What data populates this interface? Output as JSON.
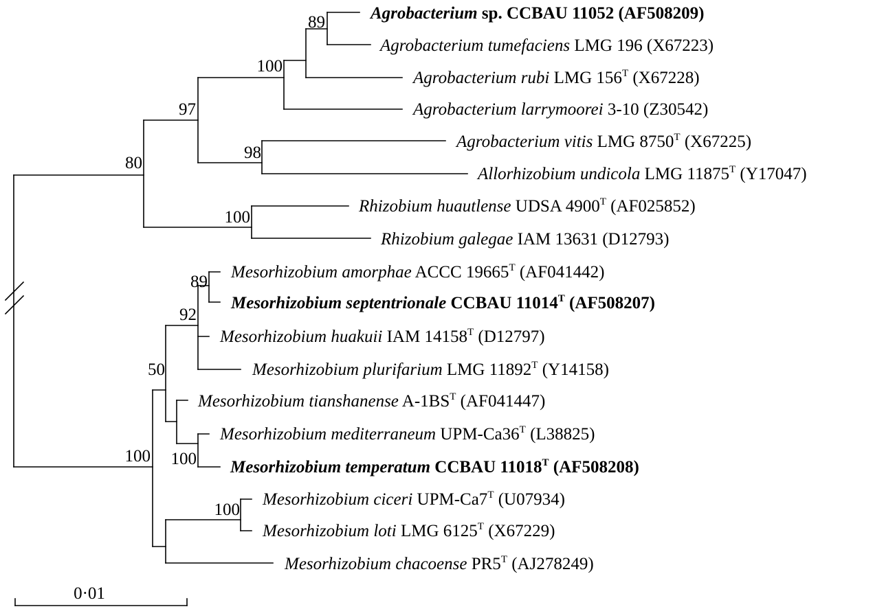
{
  "scale_bar": {
    "label": "0·01"
  },
  "break_mark": {
    "description": "//"
  },
  "bootstrap": [
    {
      "id": "b_agro_tum",
      "value": "89"
    },
    {
      "id": "b_agro_rubi",
      "value": "100"
    },
    {
      "id": "b_agro_vitis",
      "value": "97"
    },
    {
      "id": "b_vitis_allo",
      "value": "98"
    },
    {
      "id": "b_rhizo_root",
      "value": "80"
    },
    {
      "id": "b_rhizo_pair",
      "value": "100"
    },
    {
      "id": "b_meso_amor",
      "value": "89"
    },
    {
      "id": "b_meso_huak",
      "value": "92"
    },
    {
      "id": "b_meso_50",
      "value": "50"
    },
    {
      "id": "b_meso_medi",
      "value": "100"
    },
    {
      "id": "b_meso_cice",
      "value": "100"
    },
    {
      "id": "b_meso_root",
      "value": "100"
    }
  ],
  "taxa": [
    {
      "genus_species": "Agrobacterium",
      "epithet": " sp. CCBAU 11052",
      "superscript": "",
      "accession": " (AF508209)",
      "bold": true,
      "epithet_italic": false
    },
    {
      "genus_species": "Agrobacterium tumefaciens",
      "epithet": " LMG 196",
      "superscript": "",
      "accession": " (X67223)",
      "bold": false
    },
    {
      "genus_species": "Agrobacterium rubi",
      "epithet": " LMG 156",
      "superscript": "T",
      "accession": " (X67228)",
      "bold": false
    },
    {
      "genus_species": "Agrobacterium larrymoorei",
      "epithet": " 3-10",
      "superscript": "",
      "accession": " (Z30542)",
      "bold": false
    },
    {
      "genus_species": "Agrobacterium vitis",
      "epithet": " LMG 8750",
      "superscript": "T",
      "accession": " (X67225)",
      "bold": false
    },
    {
      "genus_species": "Allorhizobium undicola",
      "epithet": " LMG 11875",
      "superscript": "T",
      "accession": " (Y17047)",
      "bold": false
    },
    {
      "genus_species": "Rhizobium huautlense",
      "epithet": " UDSA 4900",
      "superscript": "T",
      "accession": " (AF025852)",
      "bold": false
    },
    {
      "genus_species": "Rhizobium galegae",
      "epithet": " IAM 13631",
      "superscript": "",
      "accession": " (D12793)",
      "bold": false
    },
    {
      "genus_species": "Mesorhizobium amorphae",
      "epithet": " ACCC 19665",
      "superscript": "T",
      "accession": " (AF041442)",
      "bold": false
    },
    {
      "genus_species": "Mesorhizobium septentrionale",
      "epithet": " CCBAU 11014",
      "superscript": "T",
      "accession": " (AF508207)",
      "bold": true
    },
    {
      "genus_species": "Mesorhizobium huakuii",
      "epithet": " IAM 14158",
      "superscript": "T",
      "accession": " (D12797)",
      "bold": false
    },
    {
      "genus_species": "Mesorhizobium plurifarium",
      "epithet": " LMG 11892",
      "superscript": "T",
      "accession": " (Y14158)",
      "bold": false
    },
    {
      "genus_species": "Mesorhizobium tianshanense",
      "epithet": " A-1BS",
      "superscript": "T",
      "accession": " (AF041447)",
      "bold": false
    },
    {
      "genus_species": "Mesorhizobium mediterraneum",
      "epithet": " UPM-Ca36",
      "superscript": "T",
      "accession": " (L38825)",
      "bold": false
    },
    {
      "genus_species": "Mesorhizobium temperatum",
      "epithet": " CCBAU 11018",
      "superscript": "T",
      "accession": " (AF508208)",
      "bold": true
    },
    {
      "genus_species": "Mesorhizobium ciceri",
      "epithet": " UPM-Ca7",
      "superscript": "T",
      "accession": " (U07934)",
      "bold": false
    },
    {
      "genus_species": "Mesorhizobium loti",
      "epithet": " LMG 6125",
      "superscript": "T",
      "accession": " (X67229)",
      "bold": false
    },
    {
      "genus_species": "Mesorhizobium chacoense",
      "epithet": " PR5",
      "superscript": "T",
      "accession": " (AJ278249)",
      "bold": false
    }
  ]
}
